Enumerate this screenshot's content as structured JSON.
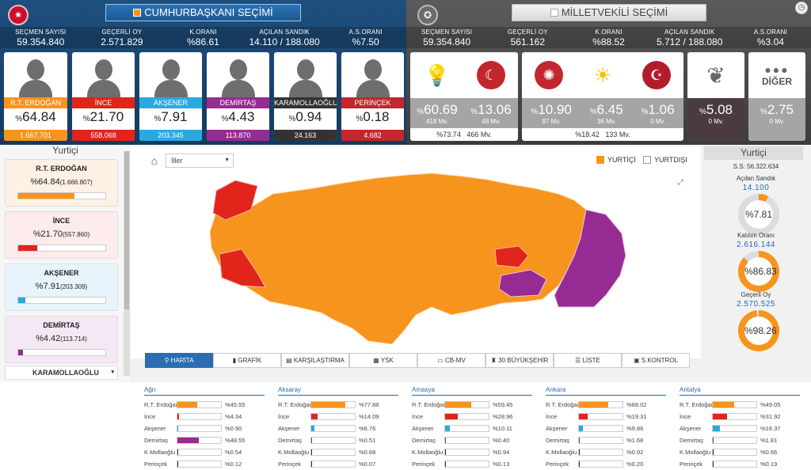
{
  "header_left": {
    "title": "CUMHURBAŞKANI SEÇİMİ",
    "stats": [
      {
        "label": "SEÇMEN SAYISI",
        "value": "59.354.840"
      },
      {
        "label": "GEÇERLİ OY",
        "value": "2.571.829"
      },
      {
        "label": "K.ORANI",
        "value": "%86.61"
      },
      {
        "label": "AÇILAN SANDIK",
        "value": "14.110 / 188.080"
      },
      {
        "label": "A.S.ORANI",
        "value": "%7.50"
      }
    ],
    "candidates": [
      {
        "name": "R.T. ERDOĞAN",
        "pct": "64.84",
        "votes": "1.667.701",
        "color": "#f7941d"
      },
      {
        "name": "İNCE",
        "pct": "21.70",
        "votes": "558.068",
        "color": "#e1251b"
      },
      {
        "name": "AKŞENER",
        "pct": "7.91",
        "votes": "203.345",
        "color": "#29a9e0"
      },
      {
        "name": "DEMİRTAŞ",
        "pct": "4.43",
        "votes": "113.870",
        "color": "#962b93"
      },
      {
        "name": "KARAMOLLAOĞLU",
        "pct": "0.94",
        "votes": "24.163",
        "color": "#333333"
      },
      {
        "name": "PERİNÇEK",
        "pct": "0.18",
        "votes": "4.682",
        "color": "#c1272d"
      }
    ]
  },
  "header_right": {
    "title": "MİLLETVEKİLİ SEÇİMİ",
    "stats": [
      {
        "label": "SEÇMEN SAYISI",
        "value": "59.354.840"
      },
      {
        "label": "GEÇERLİ OY",
        "value": "561.162"
      },
      {
        "label": "K.ORANI",
        "value": "%88.52"
      },
      {
        "label": "AÇILAN SANDIK",
        "value": "5.712 / 188.080"
      },
      {
        "label": "A.S.ORANI",
        "value": "%3.04"
      }
    ],
    "alliance1": {
      "parties": [
        {
          "pct": "60.69",
          "mv": "418 Mv."
        },
        {
          "pct": "13.06",
          "mv": "48 Mv."
        }
      ],
      "total_pct": "%73.74",
      "total_mv": "466 Mv."
    },
    "alliance2": {
      "parties": [
        {
          "pct": "10.90",
          "mv": "97 Mv."
        },
        {
          "pct": "6.45",
          "mv": "36 Mv."
        },
        {
          "pct": "1.06",
          "mv": "0 Mv."
        }
      ],
      "total_pct": "%18.42",
      "total_mv": "133 Mv."
    },
    "hdp": {
      "pct": "5.08",
      "mv": "0 Mv."
    },
    "other": {
      "label": "DİĞER",
      "pct": "2.75",
      "mv": "0 Mv."
    }
  },
  "left_panel": {
    "title": "Yurtiçi",
    "candidates": [
      {
        "name": "R.T. ERDOĞAN",
        "pct": "%64.84",
        "votes": "(1.666.807)",
        "fill": 0.6484,
        "color": "#f7941d"
      },
      {
        "name": "İNCE",
        "pct": "%21.70",
        "votes": "(557.860)",
        "fill": 0.217,
        "color": "#e1251b"
      },
      {
        "name": "AKŞENER",
        "pct": "%7.91",
        "votes": "(203.309)",
        "fill": 0.0791,
        "color": "#29a9e0"
      },
      {
        "name": "DEMİRTAŞ",
        "pct": "%4.42",
        "votes": "(113.714)",
        "fill": 0.0442,
        "color": "#962b93"
      }
    ],
    "next_label": "KARAMOLLAOĞLU"
  },
  "map": {
    "select_value": "İller",
    "yurtici": "YURTİÇİ",
    "yurtdisi": "YURTDIŞI"
  },
  "tabs": [
    "HARİTA",
    "GRAFİK",
    "KARŞILAŞTIRMA",
    "YSK",
    "CB-MV",
    "30 BÜYÜKŞEHİR",
    "LİSTE",
    "S.KONTROL"
  ],
  "right_panel": {
    "title": "Yurtiçi",
    "ss": "S.S: 56.322.634",
    "gauges": [
      {
        "label": "Açılan Sandık",
        "value": "14.100",
        "pct": "%7.81",
        "fill": 0.0781
      },
      {
        "label": "Katılım Oranı",
        "value": "2.616.144",
        "pct": "%86.83",
        "fill": 0.8683
      },
      {
        "label": "Geçerli Oy",
        "value": "2.570.525",
        "pct": "%98.26",
        "fill": 0.9826
      }
    ]
  },
  "provinces": [
    {
      "name": "Ağrı",
      "rows": [
        {
          "c": "R.T. Erdoğan",
          "p": "%45.55",
          "f": 0.4555
        },
        {
          "c": "İnce",
          "p": "%4.34",
          "f": 0.0434
        },
        {
          "c": "Akşener",
          "p": "%0.90",
          "f": 0.009
        },
        {
          "c": "Demirtaş",
          "p": "%48.55",
          "f": 0.4855
        },
        {
          "c": "K.Mollaoğlu",
          "p": "%0.54",
          "f": 0.0054
        },
        {
          "c": "Perinçek",
          "p": "%0.12",
          "f": 0.0012
        }
      ]
    },
    {
      "name": "Aksaray",
      "rows": [
        {
          "c": "R.T. Erdoğan",
          "p": "%77.88",
          "f": 0.7788
        },
        {
          "c": "İnce",
          "p": "%14.09",
          "f": 0.1409
        },
        {
          "c": "Akşener",
          "p": "%6.76",
          "f": 0.0676
        },
        {
          "c": "Demirtaş",
          "p": "%0.51",
          "f": 0.0051
        },
        {
          "c": "K.Mollaoğlu",
          "p": "%0.68",
          "f": 0.0068
        },
        {
          "c": "Perinçek",
          "p": "%0.07",
          "f": 0.0007
        }
      ]
    },
    {
      "name": "Amasya",
      "rows": [
        {
          "c": "R.T. Erdoğan",
          "p": "%59.45",
          "f": 0.5945
        },
        {
          "c": "İnce",
          "p": "%28.96",
          "f": 0.2896
        },
        {
          "c": "Akşener",
          "p": "%10.11",
          "f": 0.1011
        },
        {
          "c": "Demirtaş",
          "p": "%0.40",
          "f": 0.004
        },
        {
          "c": "K.Mollaoğlu",
          "p": "%0.94",
          "f": 0.0094
        },
        {
          "c": "Perinçek",
          "p": "%0.13",
          "f": 0.0013
        }
      ]
    },
    {
      "name": "Ankara",
      "rows": [
        {
          "c": "R.T. Erdoğan",
          "p": "%68.02",
          "f": 0.6802
        },
        {
          "c": "İnce",
          "p": "%19.31",
          "f": 0.1931
        },
        {
          "c": "Akşener",
          "p": "%9.86",
          "f": 0.0986
        },
        {
          "c": "Demirtaş",
          "p": "%1.68",
          "f": 0.0168
        },
        {
          "c": "K.Mollaoğlu",
          "p": "%0.92",
          "f": 0.0092
        },
        {
          "c": "Perinçek",
          "p": "%0.20",
          "f": 0.002
        }
      ]
    },
    {
      "name": "Antalya",
      "rows": [
        {
          "c": "R.T. Erdoğan",
          "p": "%49.05",
          "f": 0.4905
        },
        {
          "c": "İnce",
          "p": "%31.92",
          "f": 0.3192
        },
        {
          "c": "Akşener",
          "p": "%16.37",
          "f": 0.1637
        },
        {
          "c": "Demirtaş",
          "p": "%1.81",
          "f": 0.0181
        },
        {
          "c": "K.Mollaoğlu",
          "p": "%0.66",
          "f": 0.0066
        },
        {
          "c": "Perinçek",
          "p": "%0.19",
          "f": 0.0019
        }
      ]
    }
  ],
  "colors": {
    "orange": "#f7941d",
    "red": "#e1251b",
    "blue": "#29a9e0",
    "purple": "#962b93",
    "dark": "#333333"
  }
}
